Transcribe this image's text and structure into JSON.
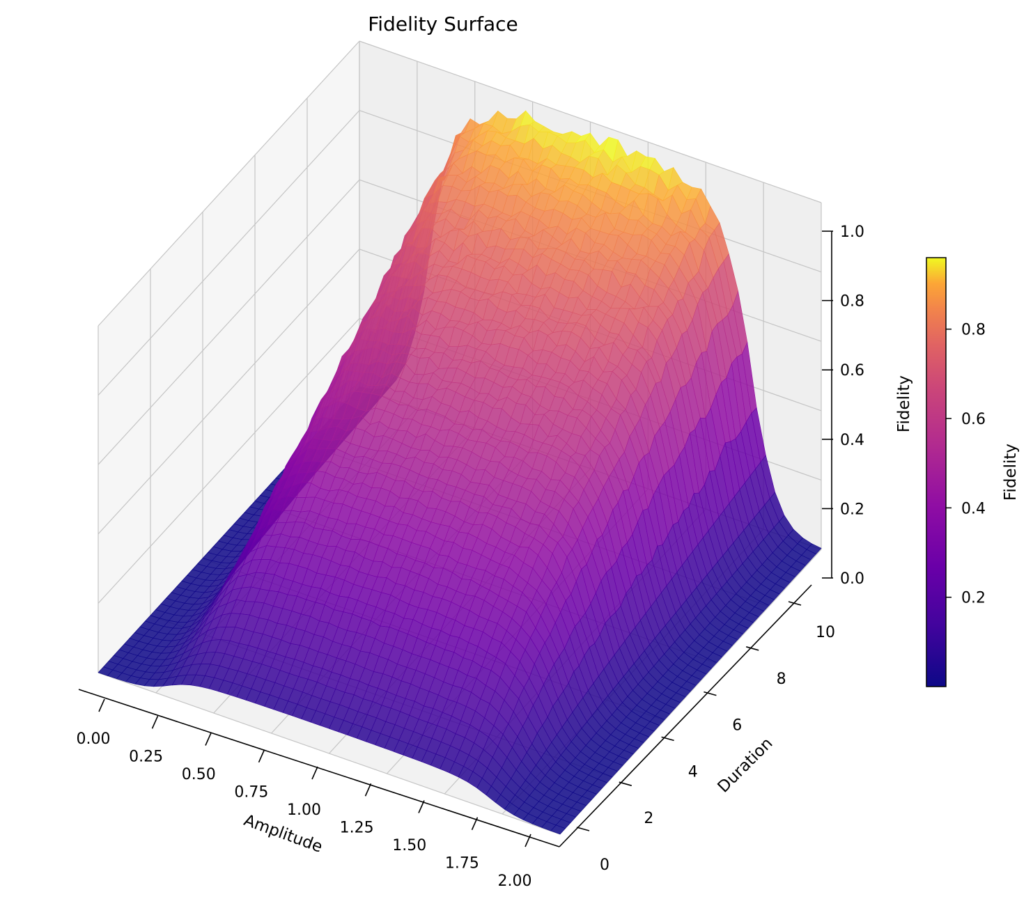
{
  "chart_data": {
    "type": "surface",
    "title": "Fidelity Surface",
    "xlabel": "Amplitude",
    "ylabel": "Duration",
    "zlabel": "Fidelity",
    "colorbar_label": "Fidelity",
    "colormap": "plasma",
    "xlim": [
      0,
      2
    ],
    "ylim": [
      0,
      10
    ],
    "zlim": [
      0,
      1
    ],
    "x_ticks": [
      "0.00",
      "0.25",
      "0.50",
      "0.75",
      "1.00",
      "1.25",
      "1.50",
      "1.75",
      "2.00"
    ],
    "y_ticks": [
      "0",
      "2",
      "4",
      "6",
      "8",
      "10"
    ],
    "z_ticks": [
      "0.0",
      "0.2",
      "0.4",
      "0.6",
      "0.8",
      "1.0"
    ],
    "colorbar_ticks": [
      "0.2",
      "0.4",
      "0.6",
      "0.8"
    ],
    "colorbar_range": [
      0.0,
      0.96
    ],
    "grid": true,
    "surface_model": {
      "description_values": "fidelity rises from ~0 at the edges to a peak near 0.96 around amplitude 1.0 and duration 10; plateau spans amplitude ~0.3 to ~1.7",
      "peak_fidelity": 0.96,
      "amplitude_plateau": [
        0.3,
        1.7
      ],
      "amplitude_center": 1.0,
      "duration_growth": "rises with duration, near 0 at duration 0"
    }
  }
}
